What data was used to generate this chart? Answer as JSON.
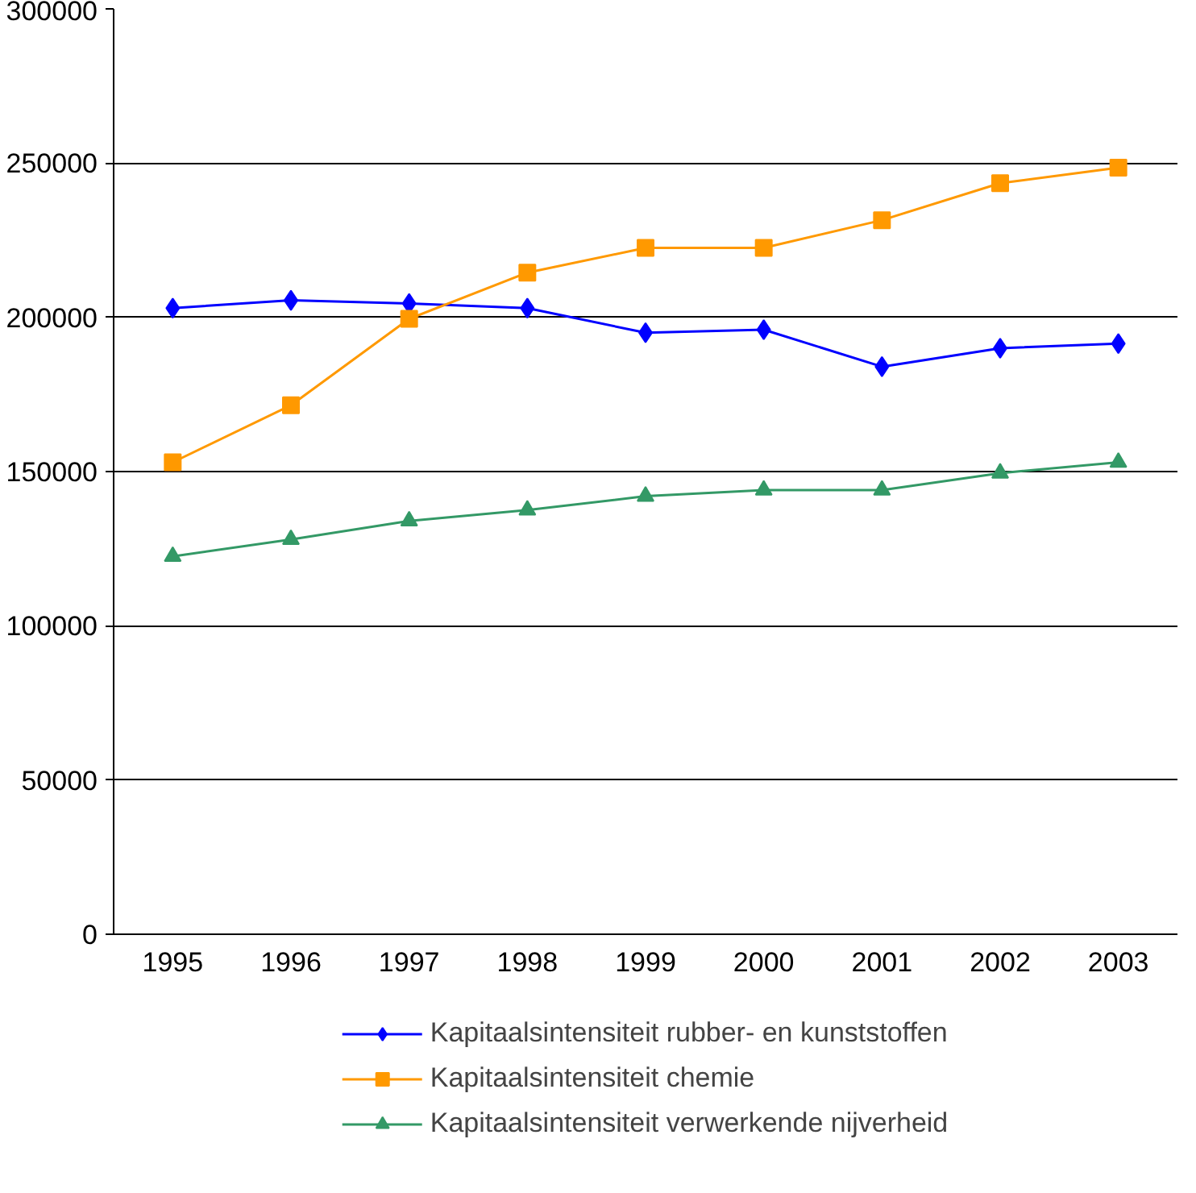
{
  "chart_data": {
    "type": "line",
    "categories": [
      "1995",
      "1996",
      "1997",
      "1998",
      "1999",
      "2000",
      "2001",
      "2002",
      "2003"
    ],
    "series": [
      {
        "name": "Kapitaalsintensiteit rubber- en kunststoffen",
        "color": "#0000ff",
        "marker": "diamond",
        "values": [
          203000,
          205500,
          204500,
          203000,
          195000,
          196000,
          184000,
          190000,
          191500
        ]
      },
      {
        "name": "Kapitaalsintensiteit chemie",
        "color": "#ff9900",
        "marker": "square",
        "values": [
          153000,
          171500,
          199500,
          214500,
          222500,
          222500,
          231500,
          243500,
          248500
        ]
      },
      {
        "name": "Kapitaalsintensiteit verwerkende nijverheid",
        "color": "#339966",
        "marker": "triangle",
        "values": [
          122500,
          128000,
          134000,
          137500,
          142000,
          144000,
          144000,
          149500,
          153000
        ]
      }
    ],
    "ylim": [
      0,
      300000
    ],
    "yticks": [
      0,
      50000,
      100000,
      150000,
      200000,
      250000,
      300000
    ],
    "grid": "y",
    "legend": "bottom",
    "line_style": "solid"
  }
}
